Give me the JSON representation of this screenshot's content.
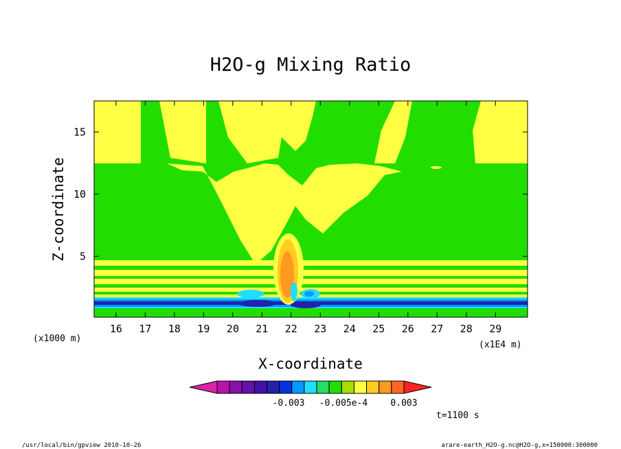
{
  "chart_data": {
    "type": "heatmap",
    "title": "H2O-g Mixing Ratio",
    "xlabel": "X-coordinate",
    "ylabel": "Z-coordinate",
    "x_units": "(x1E4 m)",
    "y_units": "(x1000 m)",
    "xlim": [
      15.25,
      30.1
    ],
    "ylim": [
      0.1,
      17.5
    ],
    "x_ticks": [
      16,
      17,
      18,
      19,
      20,
      21,
      22,
      23,
      24,
      25,
      26,
      27,
      28,
      29
    ],
    "y_ticks": [
      5,
      10,
      15
    ],
    "time_label": "t=1100 s",
    "colorbar": {
      "colors": [
        "#dd22aa",
        "#bb11aa",
        "#8811aa",
        "#6611aa",
        "#4411aa",
        "#2222aa",
        "#0033dd",
        "#0099ff",
        "#22ddff",
        "#22dd66",
        "#22dd00",
        "#aadd00",
        "#ffff44",
        "#ffcc22",
        "#ff9922",
        "#ff6622",
        "#ff2222"
      ],
      "labels": [
        "-0.003",
        "-0.005e-4",
        "0.003"
      ]
    },
    "colors": {
      "background": "#22dd00",
      "yellow": "#ffff44",
      "orange_light": "#ffcc22",
      "orange": "#ff9922",
      "cyan": "#22ddff",
      "blue": "#0099ff",
      "navy": "#2222aa"
    }
  },
  "footer": {
    "left": "/usr/local/bin/gpview  2010-10-26",
    "right": "arare-earth_H2O-g.nc@H2O-g,x=150000:300000"
  }
}
